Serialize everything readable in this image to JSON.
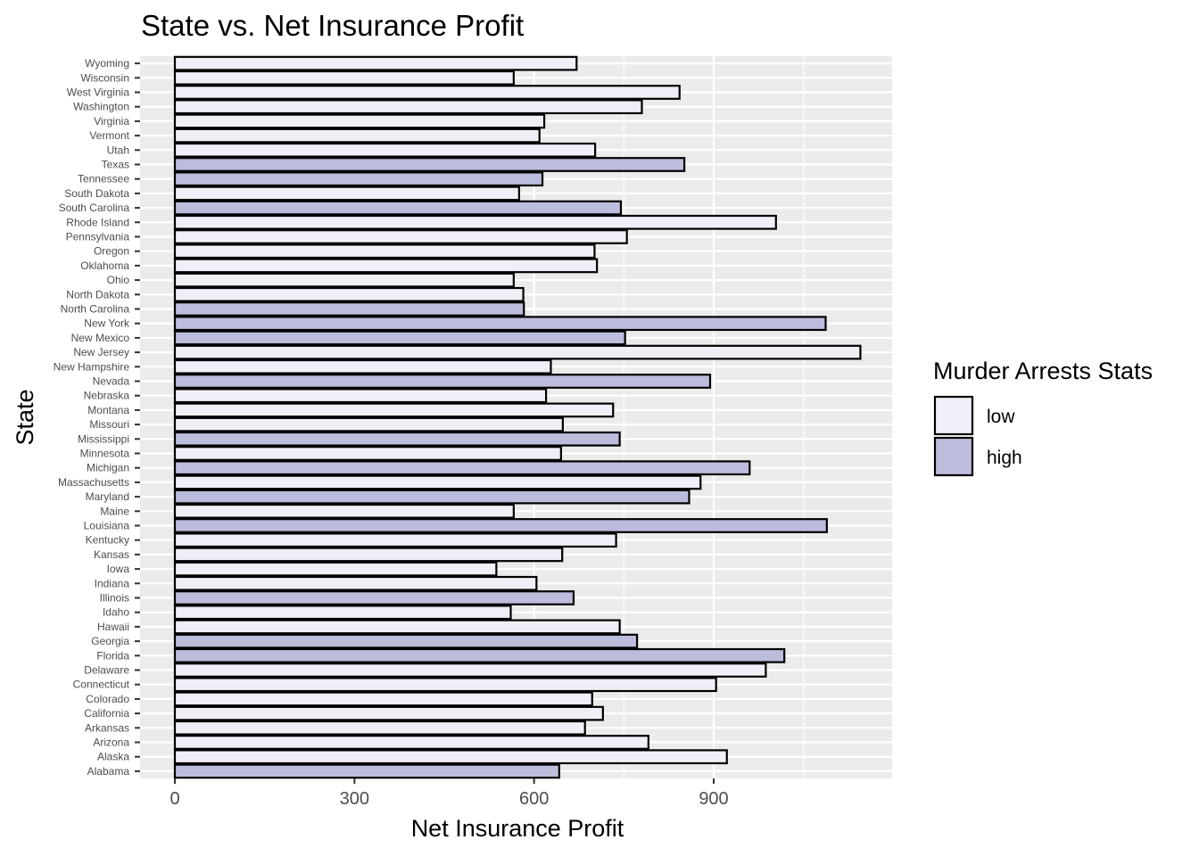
{
  "chart_data": {
    "type": "bar",
    "orientation": "horizontal",
    "title": "State vs. Net Insurance Profit",
    "xlabel": "Net Insurance Profit",
    "ylabel": "State",
    "xlim": [
      -57,
      1200
    ],
    "xticks": [
      0,
      300,
      600,
      900
    ],
    "grid": true,
    "legend": {
      "title": "Murder Arrests Stats",
      "placement": "right",
      "entries": [
        {
          "label": "low",
          "color": "#efeff8"
        },
        {
          "label": "high",
          "color": "#bcbddc"
        }
      ]
    },
    "categories": [
      "Alabama",
      "Alaska",
      "Arizona",
      "Arkansas",
      "California",
      "Colorado",
      "Connecticut",
      "Delaware",
      "Florida",
      "Georgia",
      "Hawaii",
      "Idaho",
      "Illinois",
      "Indiana",
      "Iowa",
      "Kansas",
      "Kentucky",
      "Louisiana",
      "Maine",
      "Maryland",
      "Massachusetts",
      "Michigan",
      "Minnesota",
      "Mississippi",
      "Missouri",
      "Montana",
      "Nebraska",
      "Nevada",
      "New Hampshire",
      "New Jersey",
      "New Mexico",
      "New York",
      "North Carolina",
      "North Dakota",
      "Ohio",
      "Oklahoma",
      "Oregon",
      "Pennsylvania",
      "Rhode Island",
      "South Carolina",
      "South Dakota",
      "Tennessee",
      "Texas",
      "Utah",
      "Vermont",
      "Virginia",
      "Washington",
      "West Virginia",
      "Wisconsin",
      "Wyoming"
    ],
    "values": [
      642,
      922,
      791,
      685,
      715,
      697,
      904,
      987,
      1018,
      772,
      743,
      561,
      666,
      604,
      537,
      647,
      737,
      1089,
      566,
      859,
      878,
      960,
      645,
      743,
      648,
      732,
      620,
      894,
      628,
      1145,
      752,
      1087,
      583,
      582,
      566,
      705,
      701,
      755,
      1004,
      745,
      575,
      614,
      851,
      702,
      609,
      617,
      780,
      843,
      566,
      671
    ],
    "groups": [
      "high",
      "low",
      "low",
      "low",
      "low",
      "low",
      "low",
      "low",
      "high",
      "high",
      "low",
      "low",
      "high",
      "low",
      "low",
      "low",
      "low",
      "high",
      "low",
      "high",
      "low",
      "high",
      "low",
      "high",
      "low",
      "low",
      "low",
      "high",
      "low",
      "low",
      "high",
      "high",
      "high",
      "low",
      "low",
      "low",
      "low",
      "low",
      "low",
      "high",
      "low",
      "high",
      "high",
      "low",
      "low",
      "low",
      "low",
      "low",
      "low",
      "low"
    ]
  }
}
